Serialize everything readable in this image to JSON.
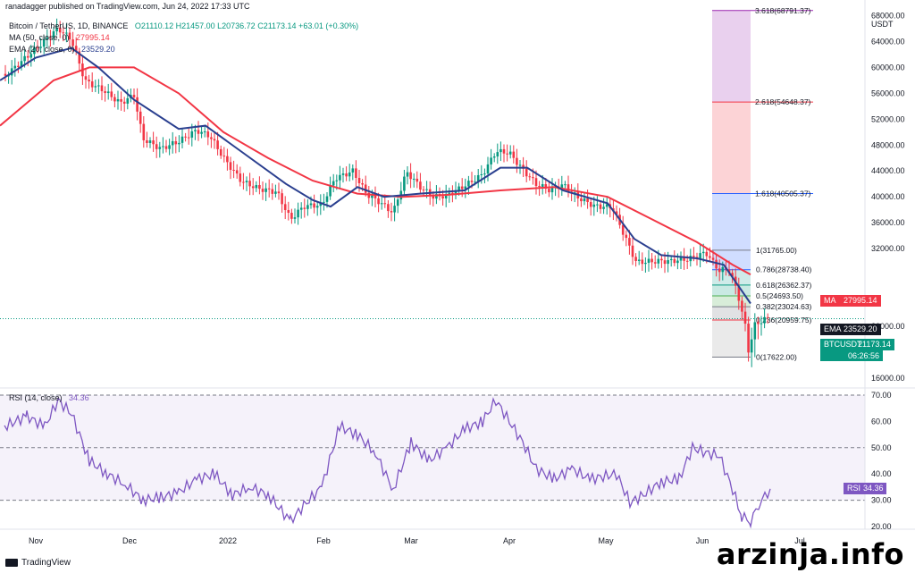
{
  "header": {
    "publisher": "ranadagger published on TradingView.com, Jun 24, 2022 17:33 UTC",
    "symbol": "Bitcoin / TetherUS, 1D, BINANCE",
    "ohlc": "O21110.12  H21457.00  L20736.72  C21173.14  +63.01 (+0.30%)",
    "ma_label": "MA (50, close, 0)",
    "ma_value": "27995.14",
    "ema_label": "EMA (20, close, 0)",
    "ema_value": "23529.20",
    "rsi_label": "RSI (14, close)",
    "rsi_value": "34.36"
  },
  "price_axis": {
    "currency": "USDT",
    "ticks": [
      "68000.00",
      "64000.00",
      "60000.00",
      "56000.00",
      "52000.00",
      "48000.00",
      "44000.00",
      "40000.00",
      "36000.00",
      "32000.00",
      "20000.00",
      "16000.00"
    ]
  },
  "rsi_axis": {
    "ticks": [
      "70.00",
      "60.00",
      "50.00",
      "40.00",
      "30.00",
      "20.00"
    ]
  },
  "tags": {
    "ma": {
      "name": "MA",
      "value": "27995.14",
      "color": "#f23645"
    },
    "ema": {
      "name": "EMA",
      "value": "23529.20",
      "color": "#131722"
    },
    "price": {
      "name": "BTCUSDT",
      "value": "21173.14",
      "color": "#089981"
    },
    "countdown": "06:26:56",
    "rsi": {
      "name": "RSI",
      "value": "34.36",
      "color": "#7e57c2"
    }
  },
  "time_axis": [
    "Nov",
    "Dec",
    "2022",
    "Feb",
    "Mar",
    "Apr",
    "May",
    "Jun",
    "Jul"
  ],
  "footer": {
    "brand": "TradingView"
  },
  "watermark": "arzinja.info",
  "chart_data": {
    "type": "candlestick",
    "symbol": "BTCUSDT",
    "interval": "1D",
    "price_range": [
      16000,
      70000
    ],
    "rsi_range": [
      20,
      70
    ],
    "series": [
      {
        "name": "BTCUSDT",
        "dates": [
          "Nov",
          "Dec",
          "2022",
          "Feb",
          "Mar",
          "Apr",
          "May",
          "Jun",
          "Jul"
        ],
        "close": [
          61000,
          57000,
          47000,
          38500,
          43000,
          45500,
          38000,
          31700,
          21173
        ]
      },
      {
        "name": "MA (50, close, 0)",
        "x": [
          "Oct",
          "Nov",
          "Dec",
          "Jan",
          "Feb",
          "Mar",
          "Apr",
          "May",
          "Jun"
        ],
        "values": [
          51000,
          60500,
          57500,
          49000,
          42000,
          40500,
          41200,
          39000,
          27995
        ]
      },
      {
        "name": "EMA (20, close, 0)",
        "x": [
          "Oct",
          "Nov",
          "Dec",
          "Jan",
          "Feb",
          "Mar",
          "Apr",
          "May",
          "Jun"
        ],
        "values": [
          58000,
          63500,
          55500,
          44000,
          38500,
          40500,
          45000,
          36500,
          23529
        ]
      },
      {
        "name": "RSI (14, close)",
        "x": [
          "Nov",
          "Dec",
          "Jan",
          "Feb",
          "Mar",
          "Apr",
          "May",
          "Jun"
        ],
        "values": [
          62,
          35,
          43,
          28,
          52,
          70,
          32,
          34.36
        ]
      }
    ],
    "fibonacci_levels": [
      {
        "ratio": "0",
        "label": "0(17622.00)",
        "price": 17622.0,
        "color": "#787b86"
      },
      {
        "ratio": "0.236",
        "label": "0.236(20959.75)",
        "price": 20959.75,
        "color": "#f23645"
      },
      {
        "ratio": "0.382",
        "label": "0.382(23024.63)",
        "price": 23024.63,
        "color": "#787b86"
      },
      {
        "ratio": "0.5",
        "label": "0.5(24693.50)",
        "price": 24693.5,
        "color": "#4caf50"
      },
      {
        "ratio": "0.618",
        "label": "0.618(26362.37)",
        "price": 26362.37,
        "color": "#089981"
      },
      {
        "ratio": "0.786",
        "label": "0.786(28738.40)",
        "price": 28738.4,
        "color": "#2962ff"
      },
      {
        "ratio": "1",
        "label": "1(31765.00)",
        "price": 31765.0,
        "color": "#787b86"
      },
      {
        "ratio": "1.618",
        "label": "1.618(40505.37)",
        "price": 40505.37,
        "color": "#2962ff"
      },
      {
        "ratio": "2.618",
        "label": "2.618(54648.37)",
        "price": 54648.37,
        "color": "#f23645"
      },
      {
        "ratio": "3.618",
        "label": "3.618(68791.37)",
        "price": 68791.37,
        "color": "#9c27b0"
      }
    ],
    "colors": {
      "up": "#089981",
      "down": "#f23645",
      "ma": "#f23645",
      "ema": "#131722",
      "rsi": "#7e57c2"
    }
  }
}
